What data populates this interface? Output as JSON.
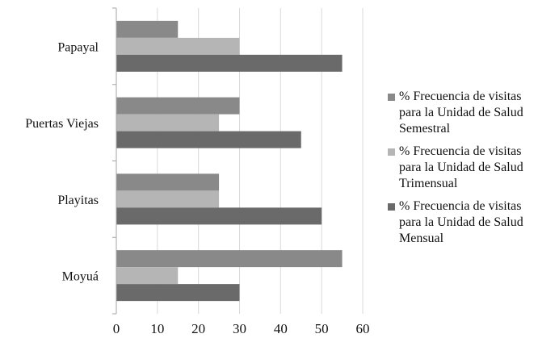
{
  "chart_data": {
    "type": "bar",
    "orientation": "horizontal",
    "categories": [
      "Papayal",
      "Puertas Viejas",
      "Playitas",
      "Moyuá"
    ],
    "series": [
      {
        "name": "% Frecuencia de visitas para la Unidad de Salud Semestral",
        "color": "#898989",
        "values": [
          15,
          30,
          25,
          55
        ]
      },
      {
        "name": "% Frecuencia de visitas para la Unidad de Salud Trimensual",
        "color": "#b5b5b5",
        "values": [
          30,
          25,
          25,
          15
        ]
      },
      {
        "name": "% Frecuencia de visitas para la Unidad de Salud Mensual",
        "color": "#6a6a6a",
        "values": [
          55,
          45,
          50,
          30
        ]
      }
    ],
    "xlim": [
      0,
      60
    ],
    "xticks": [
      "0",
      "10",
      "20",
      "30",
      "40",
      "50",
      "60"
    ],
    "grid": true,
    "legend_position": "right"
  },
  "legend": {
    "items": [
      {
        "text": "% Frecuencia de visitas\npara la Unidad de Salud\nSemestral",
        "color": "#898989"
      },
      {
        "text": "% Frecuencia de visitas\npara la Unidad de Salud\nTrimensual",
        "color": "#b5b5b5"
      },
      {
        "text": "% Frecuencia de visitas\npara la Unidad de Salud\nMensual",
        "color": "#6a6a6a"
      }
    ]
  }
}
